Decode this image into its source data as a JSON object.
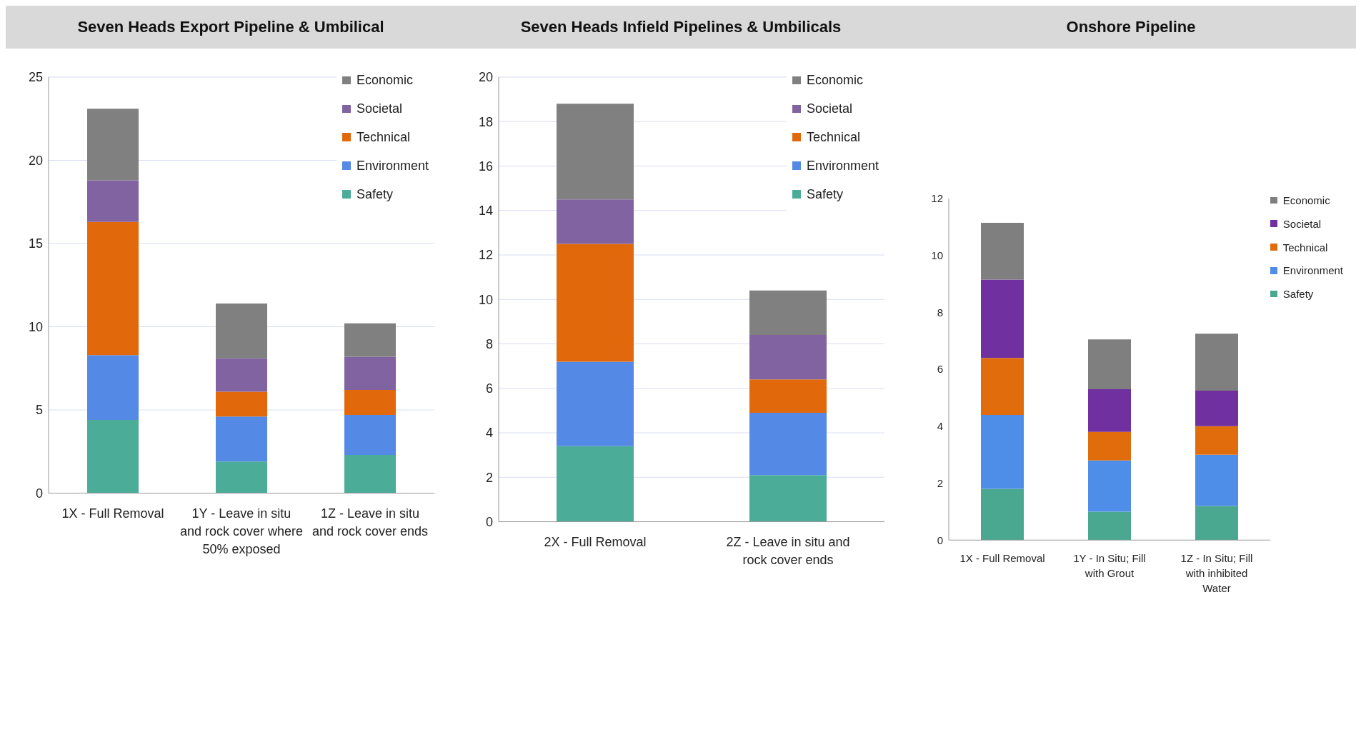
{
  "chart_data": [
    {
      "type": "bar",
      "title": "Seven Heads Export Pipeline & Umbilical",
      "categories": [
        "1X - Full Removal",
        "1Y - Leave in situ and rock cover where 50% exposed",
        "1Z - Leave in situ and rock cover ends"
      ],
      "stacked": true,
      "ylim": [
        0,
        25
      ],
      "yticks": [
        0,
        5,
        10,
        15,
        20,
        25
      ],
      "grid": "y",
      "legend": "top right",
      "series": [
        {
          "name": "Safety",
          "color": "#4bac98",
          "values": [
            4.4,
            1.9,
            2.3
          ]
        },
        {
          "name": "Environment",
          "color": "#5489e5",
          "values": [
            3.9,
            2.7,
            2.4
          ]
        },
        {
          "name": "Technical",
          "color": "#e2690b",
          "values": [
            8.0,
            1.5,
            1.5
          ]
        },
        {
          "name": "Societal",
          "color": "#8063a0",
          "values": [
            2.5,
            2.0,
            2.0
          ]
        },
        {
          "name": "Economic",
          "color": "#808080",
          "values": [
            4.3,
            3.3,
            2.0
          ]
        }
      ]
    },
    {
      "type": "bar",
      "title": "Seven Heads Infield Pipelines & Umbilicals",
      "categories": [
        "2X - Full Removal",
        "2Z - Leave in situ and rock cover ends"
      ],
      "stacked": true,
      "ylim": [
        0,
        20
      ],
      "yticks": [
        0,
        2,
        4,
        6,
        8,
        10,
        12,
        14,
        16,
        18,
        20
      ],
      "grid": "y",
      "legend": "top right",
      "series": [
        {
          "name": "Safety",
          "color": "#4bac98",
          "values": [
            3.4,
            2.1
          ]
        },
        {
          "name": "Environment",
          "color": "#5489e5",
          "values": [
            3.8,
            2.8
          ]
        },
        {
          "name": "Technical",
          "color": "#e2690b",
          "values": [
            5.3,
            1.5
          ]
        },
        {
          "name": "Societal",
          "color": "#8063a0",
          "values": [
            2.0,
            2.0
          ]
        },
        {
          "name": "Economic",
          "color": "#808080",
          "values": [
            4.3,
            2.0
          ]
        }
      ]
    },
    {
      "type": "bar",
      "title": "Onshore Pipeline",
      "categories": [
        "1X - Full Removal",
        "1Y - In Situ; Fill with Grout",
        "1Z - In Situ; Fill with inhibited Water"
      ],
      "stacked": true,
      "ylim": [
        0,
        12
      ],
      "yticks": [
        0,
        2,
        4,
        6,
        8,
        10,
        12
      ],
      "grid": false,
      "legend": "top right",
      "series": [
        {
          "name": "Safety",
          "color": "#4aa890",
          "values": [
            1.8,
            1.0,
            1.2
          ]
        },
        {
          "name": "Environment",
          "color": "#4f8ee8",
          "values": [
            2.6,
            1.8,
            1.8
          ]
        },
        {
          "name": "Technical",
          "color": "#e06c0c",
          "values": [
            2.0,
            1.0,
            1.0
          ]
        },
        {
          "name": "Societal",
          "color": "#7030a0",
          "values": [
            2.75,
            1.5,
            1.25
          ]
        },
        {
          "name": "Economic",
          "color": "#7f7f7f",
          "values": [
            2.0,
            1.75,
            2.0
          ]
        }
      ]
    }
  ]
}
